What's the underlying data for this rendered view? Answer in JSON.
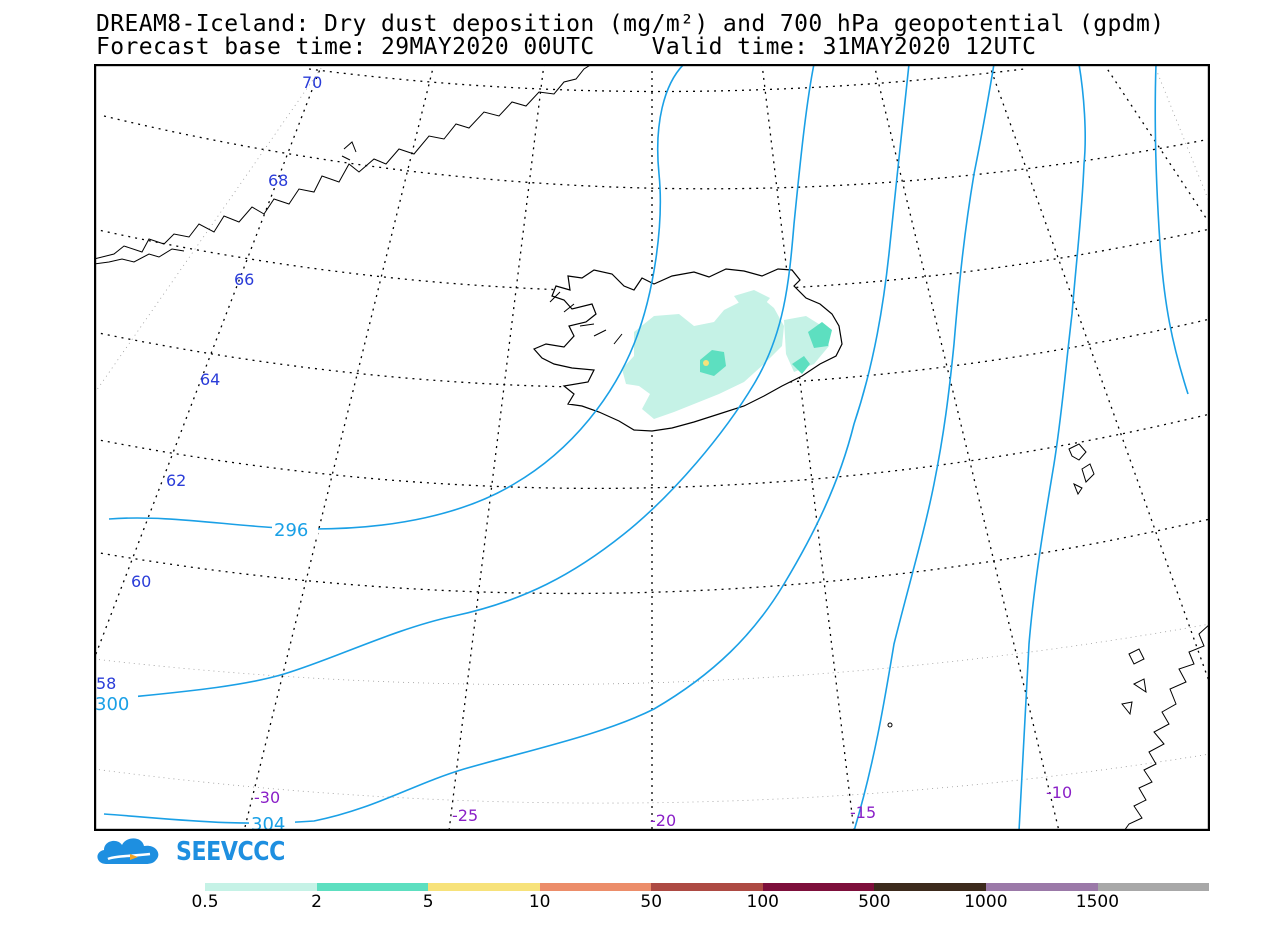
{
  "title": {
    "line1": "DREAM8-Iceland: Dry dust deposition (mg/m²) and 700 hPa geopotential (gpdm)",
    "line2": "Forecast base time: 29MAY2020 00UTC    Valid time: 31MAY2020 12UTC"
  },
  "map": {
    "latitude_labels": [
      "70",
      "68",
      "66",
      "64",
      "62",
      "60",
      "58"
    ],
    "longitude_labels": [
      "-30",
      "-25",
      "-20",
      "-15",
      "-10"
    ],
    "geopotential_labels": [
      "296",
      "300",
      "304"
    ],
    "contour_color": "#1aa0e6",
    "dust_colors": {
      "light": "#c5f2e6",
      "medium": "#5ddfc0",
      "high": "#f7e27a"
    }
  },
  "logo": {
    "text": "SEEVCCC",
    "icon": "cloud-icon"
  },
  "colorbar": {
    "colors": [
      "#c5f2e6",
      "#5ddfc0",
      "#f7e27a",
      "#ec8d6a",
      "#ad4a43",
      "#7d0f3b",
      "#3c2a1c",
      "#9b79a8",
      "#a8a8a8"
    ],
    "labels": [
      "0.5",
      "2",
      "5",
      "10",
      "50",
      "100",
      "500",
      "1000",
      "1500"
    ]
  }
}
